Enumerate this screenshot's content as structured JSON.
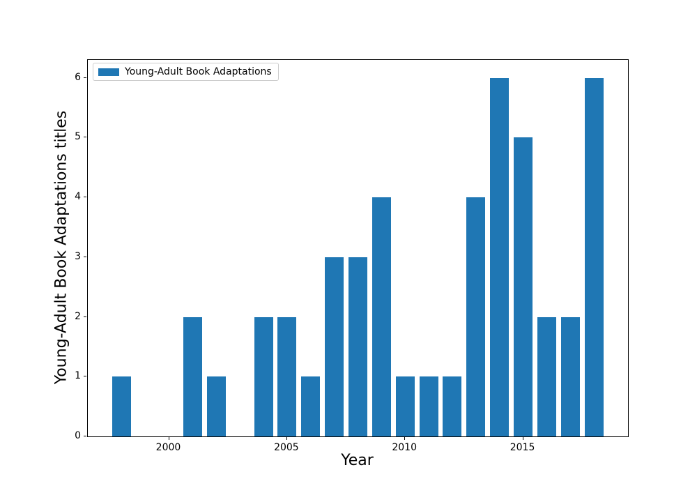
{
  "chart_data": {
    "type": "bar",
    "title": "",
    "xlabel": "Year",
    "ylabel": "Young-Adult Book Adaptations titles",
    "legend": {
      "label": "Young-Adult Book Adaptations",
      "position": "upper left"
    },
    "bar_color": "#1f77b4",
    "x": [
      1998,
      1999,
      2000,
      2001,
      2002,
      2003,
      2004,
      2005,
      2006,
      2007,
      2008,
      2009,
      2010,
      2011,
      2012,
      2013,
      2014,
      2015,
      2016,
      2017,
      2018
    ],
    "values": [
      1,
      0,
      0,
      2,
      1,
      0,
      2,
      2,
      1,
      3,
      3,
      4,
      1,
      1,
      1,
      4,
      6,
      5,
      2,
      2,
      6
    ],
    "bar_width": 0.8,
    "xticks": [
      2000,
      2005,
      2010,
      2015
    ],
    "yticks": [
      0,
      1,
      2,
      3,
      4,
      5,
      6
    ],
    "xlim": [
      1996.56,
      2019.44
    ],
    "ylim": [
      0,
      6.3
    ],
    "grid": false,
    "background": "#ffffff",
    "frame_color": "#000000"
  }
}
